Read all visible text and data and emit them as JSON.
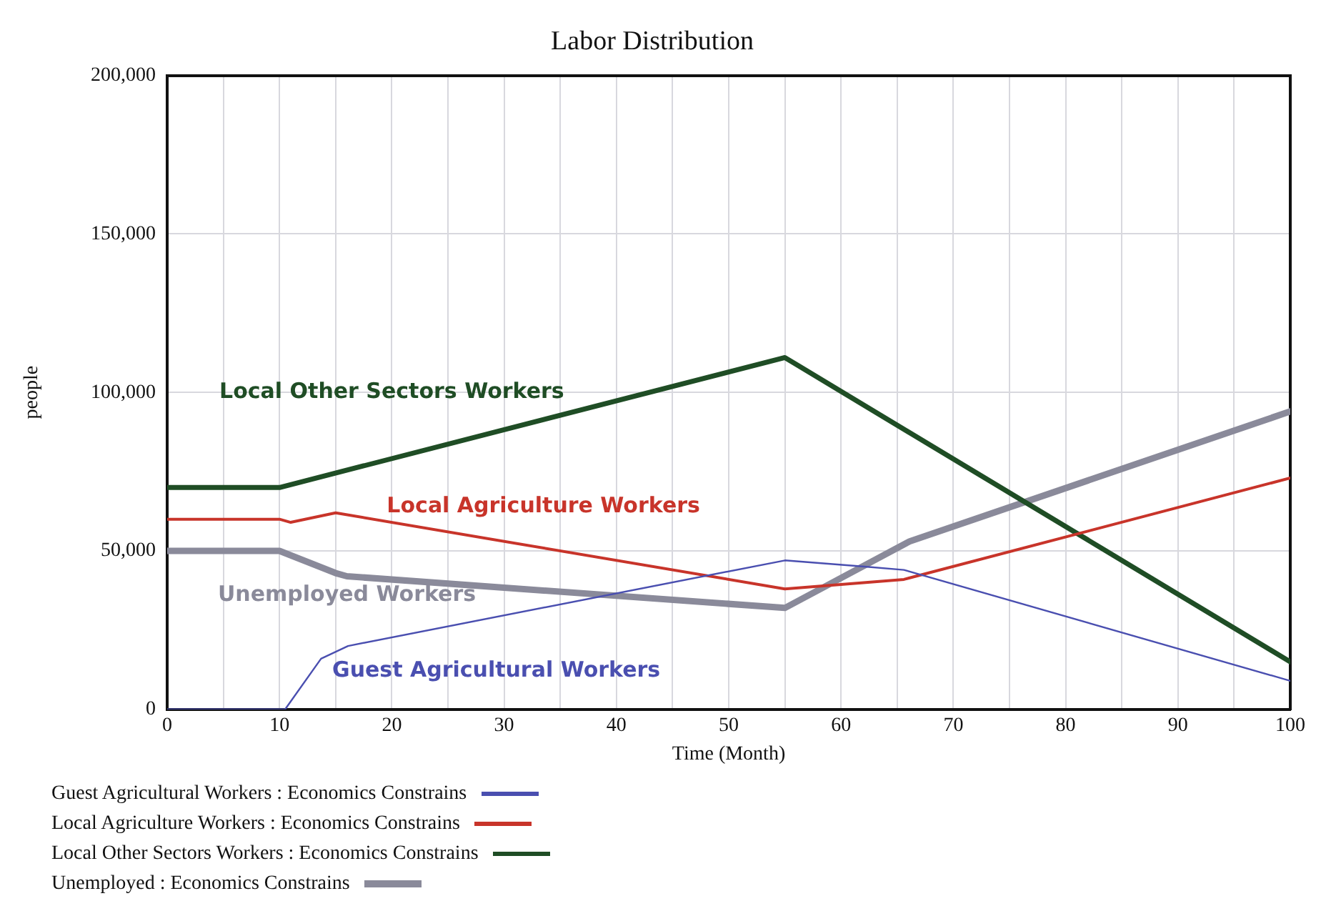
{
  "chart_data": {
    "type": "line",
    "title": "Labor Distribution",
    "xlabel": "Time (Month)",
    "ylabel": "people",
    "xlim": [
      0,
      100
    ],
    "xticks": [
      0,
      {
        "value": 5,
        "label": null
      },
      10,
      {
        "value": 15,
        "label": null
      },
      20,
      {
        "value": 25,
        "label": null
      },
      30,
      {
        "value": 35,
        "label": null
      },
      40,
      {
        "value": 45,
        "label": null
      },
      50,
      {
        "value": 55,
        "label": null
      },
      60,
      {
        "value": 65,
        "label": null
      },
      70,
      {
        "value": 75,
        "label": null
      },
      80,
      {
        "value": 85,
        "label": null
      },
      90,
      {
        "value": 95,
        "label": null
      },
      100
    ],
    "ylim": [
      0,
      200000
    ],
    "yticks": [
      0,
      {
        "value": 50000,
        "label": "50,000"
      },
      {
        "value": 100000,
        "label": "100,000"
      },
      {
        "value": 150000,
        "label": "150,000"
      },
      {
        "value": 200000,
        "label": "200,000"
      }
    ],
    "grid": true,
    "legend": "bottom",
    "marker": "none",
    "line_style": "solid",
    "series": [
      {
        "name": "Guest Agricultural Workers : Economics Constrains",
        "color": "#4a4fb0",
        "x": [
          0,
          10.5,
          13.7,
          16.1,
          55,
          62.3,
          65.6,
          100
        ],
        "values": [
          0,
          0,
          16000,
          20000,
          47000,
          45000,
          44000,
          9000
        ]
      },
      {
        "name": "Local Agriculture Workers : Economics Constrains",
        "color": "#c8342a",
        "x": [
          0,
          10,
          11,
          15,
          55,
          65.6,
          100
        ],
        "values": [
          60000,
          60000,
          59000,
          62000,
          38000,
          41000,
          73000
        ]
      },
      {
        "name": "Local Other Sectors Workers : Economics Constrains",
        "color": "#1f4d25",
        "x": [
          0,
          10,
          55,
          100
        ],
        "values": [
          70000,
          70000,
          111000,
          15000
        ]
      },
      {
        "name": "Unemployed : Economics Constrains",
        "color": "#8a8a9a",
        "x": [
          0,
          10,
          15,
          16,
          55,
          66.1,
          100
        ],
        "values": [
          50000,
          50000,
          43000,
          42000,
          32000,
          53000,
          94000
        ]
      }
    ],
    "annotations": [
      "Guest Agricultural Workers",
      "Local Agriculture Workers",
      "Local Other Sectors Workers",
      "Unemployed Workers"
    ]
  }
}
